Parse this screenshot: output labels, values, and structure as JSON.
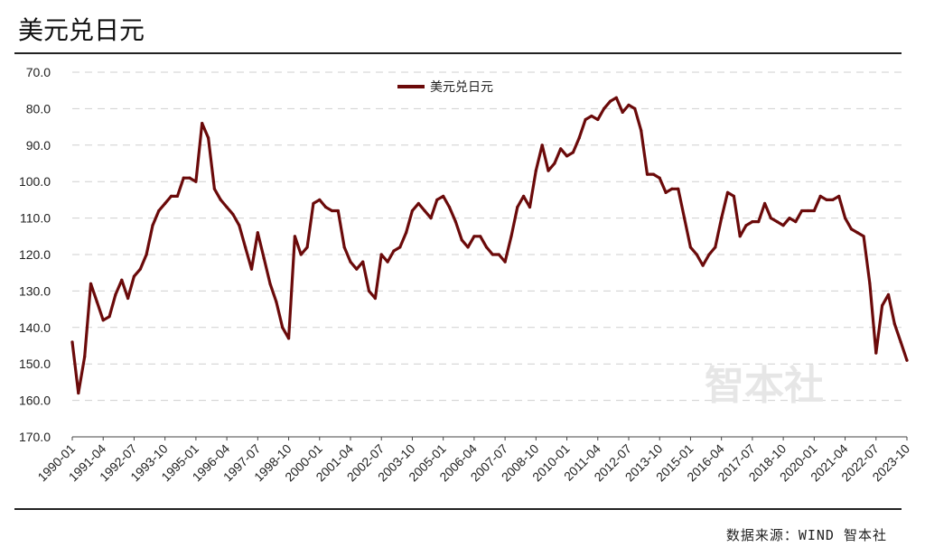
{
  "header": {
    "title": "美元兑日元",
    "source": "数据来源：WIND 智本社"
  },
  "watermark": "智本社",
  "colors": {
    "series": "#6b0a0a",
    "grid": "#cfcfcf"
  },
  "chart_data": {
    "type": "line",
    "title": "美元兑日元",
    "ylim": [
      70,
      170
    ],
    "y_inverted": true,
    "y_ticks": [
      "70.0",
      "80.0",
      "90.0",
      "100.0",
      "110.0",
      "120.0",
      "130.0",
      "140.0",
      "150.0",
      "160.0",
      "170.0"
    ],
    "y_tick_values": [
      70,
      80,
      90,
      100,
      110,
      120,
      130,
      140,
      150,
      160,
      170
    ],
    "x_ticks": [
      "1990-01",
      "1991-04",
      "1992-07",
      "1993-10",
      "1995-01",
      "1996-04",
      "1997-07",
      "1998-10",
      "2000-01",
      "2001-04",
      "2002-07",
      "2003-10",
      "2005-01",
      "2006-04",
      "2007-07",
      "2008-10",
      "2010-01",
      "2011-04",
      "2012-07",
      "2013-10",
      "2015-01",
      "2016-04",
      "2017-07",
      "2018-10",
      "2020-01",
      "2021-04",
      "2022-07",
      "2023-10"
    ],
    "grid": true,
    "legend_position": "top-center",
    "series": [
      {
        "name": "美元兑日元",
        "x": [
          "1990-01",
          "1990-04",
          "1990-07",
          "1990-10",
          "1991-01",
          "1991-04",
          "1991-07",
          "1991-10",
          "1992-01",
          "1992-04",
          "1992-07",
          "1992-10",
          "1993-01",
          "1993-04",
          "1993-07",
          "1993-10",
          "1994-01",
          "1994-04",
          "1994-07",
          "1994-10",
          "1995-01",
          "1995-04",
          "1995-07",
          "1995-10",
          "1996-01",
          "1996-04",
          "1996-07",
          "1996-10",
          "1997-01",
          "1997-04",
          "1997-07",
          "1997-10",
          "1998-01",
          "1998-04",
          "1998-07",
          "1998-10",
          "1999-01",
          "1999-04",
          "1999-07",
          "1999-10",
          "2000-01",
          "2000-04",
          "2000-07",
          "2000-10",
          "2001-01",
          "2001-04",
          "2001-07",
          "2001-10",
          "2002-01",
          "2002-04",
          "2002-07",
          "2002-10",
          "2003-01",
          "2003-04",
          "2003-07",
          "2003-10",
          "2004-01",
          "2004-04",
          "2004-07",
          "2004-10",
          "2005-01",
          "2005-04",
          "2005-07",
          "2005-10",
          "2006-01",
          "2006-04",
          "2006-07",
          "2006-10",
          "2007-01",
          "2007-04",
          "2007-07",
          "2007-10",
          "2008-01",
          "2008-04",
          "2008-07",
          "2008-10",
          "2009-01",
          "2009-04",
          "2009-07",
          "2009-10",
          "2010-01",
          "2010-04",
          "2010-07",
          "2010-10",
          "2011-01",
          "2011-04",
          "2011-07",
          "2011-10",
          "2012-01",
          "2012-04",
          "2012-07",
          "2012-10",
          "2013-01",
          "2013-04",
          "2013-07",
          "2013-10",
          "2014-01",
          "2014-04",
          "2014-07",
          "2014-10",
          "2015-01",
          "2015-04",
          "2015-07",
          "2015-10",
          "2016-01",
          "2016-04",
          "2016-07",
          "2016-10",
          "2017-01",
          "2017-04",
          "2017-07",
          "2017-10",
          "2018-01",
          "2018-04",
          "2018-07",
          "2018-10",
          "2019-01",
          "2019-04",
          "2019-07",
          "2019-10",
          "2020-01",
          "2020-04",
          "2020-07",
          "2020-10",
          "2021-01",
          "2021-04",
          "2021-07",
          "2021-10",
          "2022-01",
          "2022-04",
          "2022-07",
          "2022-10",
          "2023-01",
          "2023-04",
          "2023-07",
          "2023-10"
        ],
        "values": [
          144,
          158,
          148,
          128,
          133,
          138,
          137,
          131,
          127,
          132,
          126,
          124,
          120,
          112,
          108,
          106,
          104,
          104,
          99,
          99,
          100,
          84,
          88,
          102,
          105,
          107,
          109,
          112,
          118,
          124,
          114,
          121,
          128,
          133,
          140,
          143,
          115,
          120,
          118,
          106,
          105,
          107,
          108,
          108,
          118,
          122,
          124,
          122,
          130,
          132,
          120,
          122,
          119,
          118,
          114,
          108,
          106,
          108,
          110,
          105,
          104,
          107,
          111,
          116,
          118,
          115,
          115,
          118,
          120,
          120,
          122,
          115,
          107,
          104,
          107,
          97,
          90,
          97,
          95,
          91,
          93,
          92,
          88,
          83,
          82,
          83,
          80,
          78,
          77,
          81,
          79,
          80,
          86,
          98,
          98,
          99,
          103,
          102,
          102,
          110,
          118,
          120,
          123,
          120,
          118,
          110,
          103,
          104,
          115,
          112,
          111,
          111,
          106,
          110,
          111,
          112,
          110,
          111,
          108,
          108,
          108,
          104,
          105,
          105,
          104,
          110,
          113,
          114,
          115,
          128,
          147,
          134,
          131,
          139,
          144,
          149
        ]
      }
    ]
  }
}
